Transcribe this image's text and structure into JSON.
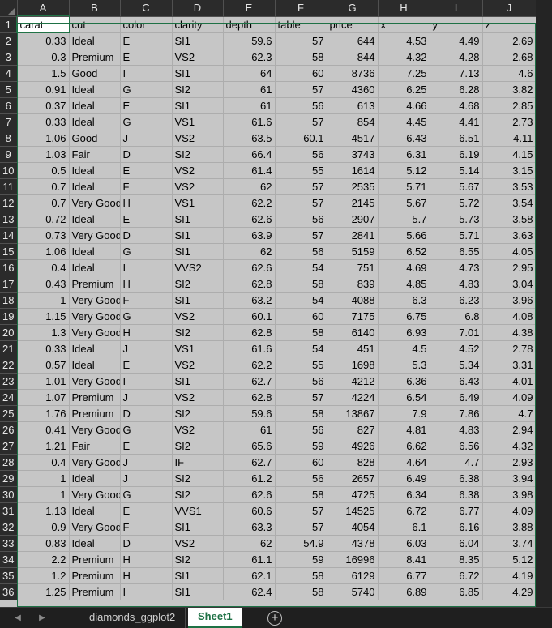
{
  "columns": [
    "A",
    "B",
    "C",
    "D",
    "E",
    "F",
    "G",
    "H",
    "I",
    "J"
  ],
  "headers": [
    "carat",
    "cut",
    "color",
    "clarity",
    "depth",
    "table",
    "price",
    "x",
    "y",
    "z"
  ],
  "rows": [
    [
      "0.33",
      "Ideal",
      "E",
      "SI1",
      "59.6",
      "57",
      "644",
      "4.53",
      "4.49",
      "2.69"
    ],
    [
      "0.3",
      "Premium",
      "E",
      "VS2",
      "62.3",
      "58",
      "844",
      "4.32",
      "4.28",
      "2.68"
    ],
    [
      "1.5",
      "Good",
      "I",
      "SI1",
      "64",
      "60",
      "8736",
      "7.25",
      "7.13",
      "4.6"
    ],
    [
      "0.91",
      "Ideal",
      "G",
      "SI2",
      "61",
      "57",
      "4360",
      "6.25",
      "6.28",
      "3.82"
    ],
    [
      "0.37",
      "Ideal",
      "E",
      "SI1",
      "61",
      "56",
      "613",
      "4.66",
      "4.68",
      "2.85"
    ],
    [
      "0.33",
      "Ideal",
      "G",
      "VS1",
      "61.6",
      "57",
      "854",
      "4.45",
      "4.41",
      "2.73"
    ],
    [
      "1.06",
      "Good",
      "J",
      "VS2",
      "63.5",
      "60.1",
      "4517",
      "6.43",
      "6.51",
      "4.11"
    ],
    [
      "1.03",
      "Fair",
      "D",
      "SI2",
      "66.4",
      "56",
      "3743",
      "6.31",
      "6.19",
      "4.15"
    ],
    [
      "0.5",
      "Ideal",
      "E",
      "VS2",
      "61.4",
      "55",
      "1614",
      "5.12",
      "5.14",
      "3.15"
    ],
    [
      "0.7",
      "Ideal",
      "F",
      "VS2",
      "62",
      "57",
      "2535",
      "5.71",
      "5.67",
      "3.53"
    ],
    [
      "0.7",
      "Very Good",
      "H",
      "VS1",
      "62.2",
      "57",
      "2145",
      "5.67",
      "5.72",
      "3.54"
    ],
    [
      "0.72",
      "Ideal",
      "E",
      "SI1",
      "62.6",
      "56",
      "2907",
      "5.7",
      "5.73",
      "3.58"
    ],
    [
      "0.73",
      "Very Good",
      "D",
      "SI1",
      "63.9",
      "57",
      "2841",
      "5.66",
      "5.71",
      "3.63"
    ],
    [
      "1.06",
      "Ideal",
      "G",
      "SI1",
      "62",
      "56",
      "5159",
      "6.52",
      "6.55",
      "4.05"
    ],
    [
      "0.4",
      "Ideal",
      "I",
      "VVS2",
      "62.6",
      "54",
      "751",
      "4.69",
      "4.73",
      "2.95"
    ],
    [
      "0.43",
      "Premium",
      "H",
      "SI2",
      "62.8",
      "58",
      "839",
      "4.85",
      "4.83",
      "3.04"
    ],
    [
      "1",
      "Very Good",
      "F",
      "SI1",
      "63.2",
      "54",
      "4088",
      "6.3",
      "6.23",
      "3.96"
    ],
    [
      "1.15",
      "Very Good",
      "G",
      "VS2",
      "60.1",
      "60",
      "7175",
      "6.75",
      "6.8",
      "4.08"
    ],
    [
      "1.3",
      "Very Good",
      "H",
      "SI2",
      "62.8",
      "58",
      "6140",
      "6.93",
      "7.01",
      "4.38"
    ],
    [
      "0.33",
      "Ideal",
      "J",
      "VS1",
      "61.6",
      "54",
      "451",
      "4.5",
      "4.52",
      "2.78"
    ],
    [
      "0.57",
      "Ideal",
      "E",
      "VS2",
      "62.2",
      "55",
      "1698",
      "5.3",
      "5.34",
      "3.31"
    ],
    [
      "1.01",
      "Very Good",
      "I",
      "SI1",
      "62.7",
      "56",
      "4212",
      "6.36",
      "6.43",
      "4.01"
    ],
    [
      "1.07",
      "Premium",
      "J",
      "VS2",
      "62.8",
      "57",
      "4224",
      "6.54",
      "6.49",
      "4.09"
    ],
    [
      "1.76",
      "Premium",
      "D",
      "SI2",
      "59.6",
      "58",
      "13867",
      "7.9",
      "7.86",
      "4.7"
    ],
    [
      "0.41",
      "Very Good",
      "G",
      "VS2",
      "61",
      "56",
      "827",
      "4.81",
      "4.83",
      "2.94"
    ],
    [
      "1.21",
      "Fair",
      "E",
      "SI2",
      "65.6",
      "59",
      "4926",
      "6.62",
      "6.56",
      "4.32"
    ],
    [
      "0.4",
      "Very Good",
      "J",
      "IF",
      "62.7",
      "60",
      "828",
      "4.64",
      "4.7",
      "2.93"
    ],
    [
      "1",
      "Ideal",
      "J",
      "SI2",
      "61.2",
      "56",
      "2657",
      "6.49",
      "6.38",
      "3.94"
    ],
    [
      "1",
      "Very Good",
      "G",
      "SI2",
      "62.6",
      "58",
      "4725",
      "6.34",
      "6.38",
      "3.98"
    ],
    [
      "1.13",
      "Ideal",
      "E",
      "VVS1",
      "60.6",
      "57",
      "14525",
      "6.72",
      "6.77",
      "4.09"
    ],
    [
      "0.9",
      "Very Good",
      "F",
      "SI1",
      "63.3",
      "57",
      "4054",
      "6.1",
      "6.16",
      "3.88"
    ],
    [
      "0.83",
      "Ideal",
      "D",
      "VS2",
      "62",
      "54.9",
      "4378",
      "6.03",
      "6.04",
      "3.74"
    ],
    [
      "2.2",
      "Premium",
      "H",
      "SI2",
      "61.1",
      "59",
      "16996",
      "8.41",
      "8.35",
      "5.12"
    ],
    [
      "1.2",
      "Premium",
      "H",
      "SI1",
      "62.1",
      "58",
      "6129",
      "6.77",
      "6.72",
      "4.19"
    ],
    [
      "1.25",
      "Premium",
      "I",
      "SI1",
      "62.4",
      "58",
      "5740",
      "6.89",
      "6.85",
      "4.29"
    ]
  ],
  "numeric_columns": [
    0,
    4,
    5,
    6,
    7,
    8,
    9
  ],
  "sheet_tabs": [
    {
      "label": "diamonds_ggplot2",
      "active": false
    },
    {
      "label": "Sheet1",
      "active": true
    }
  ],
  "icons": {
    "nav_prev": "chevron-left-icon",
    "nav_next": "chevron-right-icon",
    "add_sheet": "plus-circle-icon"
  },
  "colors": {
    "selection": "#1e7145",
    "active_tab_text": "#1e7145",
    "grid_fill": "#c6c6c6",
    "header_bg": "#2b2b2b"
  }
}
